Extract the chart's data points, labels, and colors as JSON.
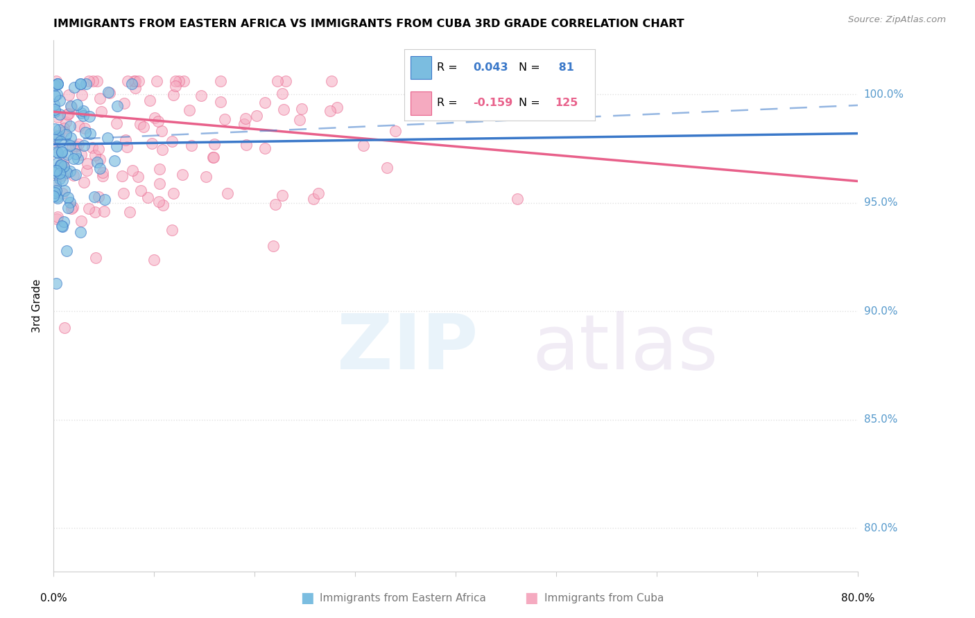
{
  "title": "IMMIGRANTS FROM EASTERN AFRICA VS IMMIGRANTS FROM CUBA 3RD GRADE CORRELATION CHART",
  "source": "Source: ZipAtlas.com",
  "ylabel": "3rd Grade",
  "ytick_labels": [
    "80.0%",
    "85.0%",
    "90.0%",
    "95.0%",
    "100.0%"
  ],
  "ytick_values": [
    0.8,
    0.85,
    0.9,
    0.95,
    1.0
  ],
  "xlim": [
    0.0,
    0.8
  ],
  "ylim": [
    0.78,
    1.025
  ],
  "color_blue": "#7bbde0",
  "color_pink": "#f5aac0",
  "color_blue_line": "#3a78c9",
  "color_pink_line": "#e8608a",
  "color_blue_text": "#3a78c9",
  "color_pink_text": "#e8608a",
  "color_axis": "#cccccc",
  "color_grid": "#dddddd",
  "color_right_labels": "#5599cc",
  "R1": 0.043,
  "N1": 81,
  "R2": -0.159,
  "N2": 125,
  "seed": 42,
  "blue_line_y0": 0.977,
  "blue_line_y1": 0.982,
  "pink_line_y0": 0.992,
  "pink_line_y1": 0.96,
  "dash_line_y0": 0.979,
  "dash_line_y1": 0.995
}
